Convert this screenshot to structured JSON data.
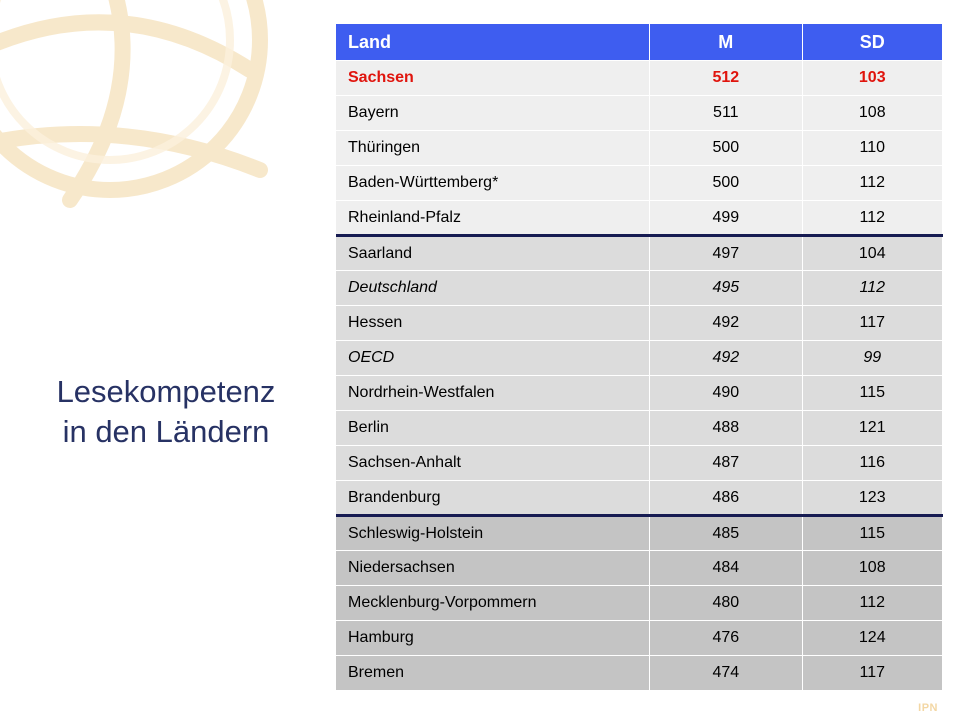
{
  "slide": {
    "title_line1": "Lesekompetenz",
    "title_line2": "in den Ländern",
    "logo_text": "IPN"
  },
  "table": {
    "headers": [
      "Land",
      "M",
      "SD"
    ],
    "rows": [
      {
        "land": "Sachsen",
        "m": "512",
        "sd": "103"
      },
      {
        "land": "Bayern",
        "m": "511",
        "sd": "108"
      },
      {
        "land": "Thüringen",
        "m": "500",
        "sd": "110"
      },
      {
        "land": "Baden-Württemberg*",
        "m": "500",
        "sd": "112"
      },
      {
        "land": "Rheinland-Pfalz",
        "m": "499",
        "sd": "112"
      },
      {
        "land": "Saarland",
        "m": "497",
        "sd": "104"
      },
      {
        "land": "Deutschland",
        "m": "495",
        "sd": "112"
      },
      {
        "land": "Hessen",
        "m": "492",
        "sd": "117"
      },
      {
        "land": "OECD",
        "m": "492",
        "sd": "99"
      },
      {
        "land": "Nordrhein-Westfalen",
        "m": "490",
        "sd": "115"
      },
      {
        "land": "Berlin",
        "m": "488",
        "sd": "121"
      },
      {
        "land": "Sachsen-Anhalt",
        "m": "487",
        "sd": "116"
      },
      {
        "land": "Brandenburg",
        "m": "486",
        "sd": "123"
      },
      {
        "land": "Schleswig-Holstein",
        "m": "485",
        "sd": "115"
      },
      {
        "land": "Niedersachsen",
        "m": "484",
        "sd": "108"
      },
      {
        "land": "Mecklenburg-Vorpommern",
        "m": "480",
        "sd": "112"
      },
      {
        "land": "Hamburg",
        "m": "476",
        "sd": "124"
      },
      {
        "land": "Bremen",
        "m": "474",
        "sd": "117"
      }
    ]
  },
  "colors": {
    "header_bg": "#3e5df0",
    "title_text": "#273264",
    "highlight_text": "#e0140d",
    "group_separator": "#161b52"
  }
}
